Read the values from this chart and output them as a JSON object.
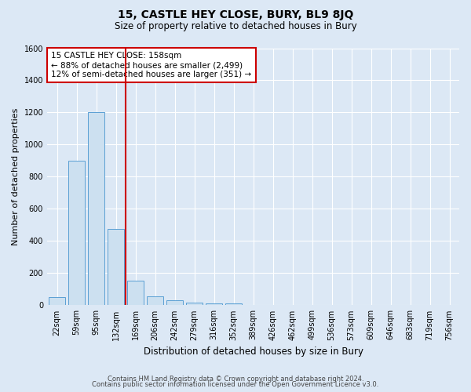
{
  "title": "15, CASTLE HEY CLOSE, BURY, BL9 8JQ",
  "subtitle": "Size of property relative to detached houses in Bury",
  "xlabel": "Distribution of detached houses by size in Bury",
  "ylabel": "Number of detached properties",
  "footer_line1": "Contains HM Land Registry data © Crown copyright and database right 2024.",
  "footer_line2": "Contains public sector information licensed under the Open Government Licence v3.0.",
  "bin_labels": [
    "22sqm",
    "59sqm",
    "95sqm",
    "132sqm",
    "169sqm",
    "206sqm",
    "242sqm",
    "279sqm",
    "316sqm",
    "352sqm",
    "389sqm",
    "426sqm",
    "462sqm",
    "499sqm",
    "536sqm",
    "573sqm",
    "609sqm",
    "646sqm",
    "683sqm",
    "719sqm",
    "756sqm"
  ],
  "bar_values": [
    50,
    900,
    1200,
    475,
    155,
    55,
    30,
    18,
    12,
    12,
    0,
    0,
    0,
    0,
    0,
    0,
    0,
    0,
    0,
    0,
    0
  ],
  "bar_color": "#cce0f0",
  "bar_edge_color": "#5a9fd4",
  "bg_color": "#dce8f5",
  "grid_color": "#ffffff",
  "red_line_index": 4,
  "red_line_color": "#cc0000",
  "annotation_text": "15 CASTLE HEY CLOSE: 158sqm\n← 88% of detached houses are smaller (2,499)\n12% of semi-detached houses are larger (351) →",
  "annotation_box_color": "#ffffff",
  "annotation_box_edge_color": "#cc0000",
  "ylim": [
    0,
    1600
  ],
  "yticks": [
    0,
    200,
    400,
    600,
    800,
    1000,
    1200,
    1400,
    1600
  ],
  "title_fontsize": 10,
  "subtitle_fontsize": 8.5,
  "ylabel_fontsize": 8,
  "xlabel_fontsize": 8.5,
  "tick_fontsize": 7,
  "annotation_fontsize": 7.5,
  "footer_fontsize": 6
}
